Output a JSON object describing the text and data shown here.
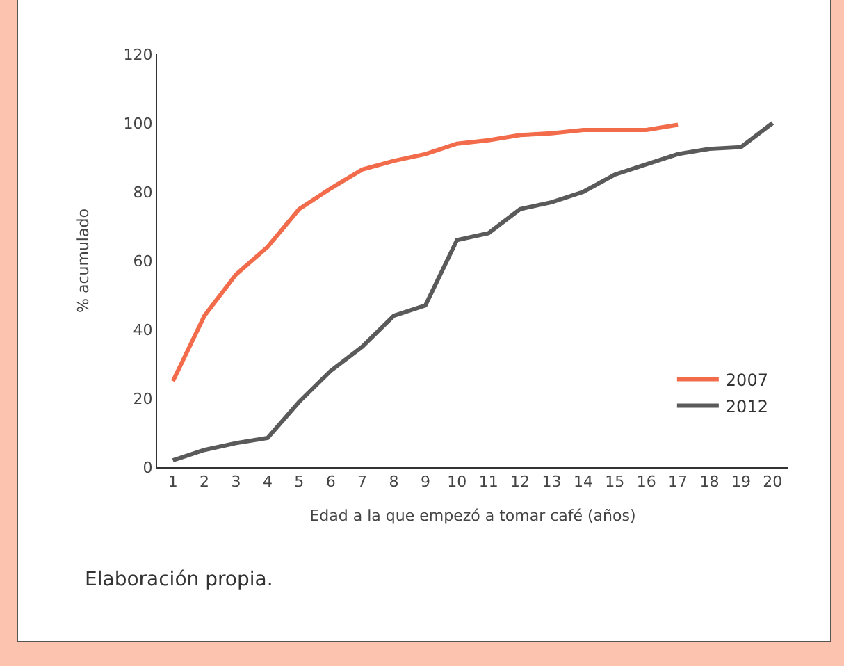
{
  "chart_data": {
    "type": "line",
    "xlabel": "Edad a la que empezó a tomar café (años)",
    "ylabel": "% acumulado",
    "x": [
      1,
      2,
      3,
      4,
      5,
      6,
      7,
      8,
      9,
      10,
      11,
      12,
      13,
      14,
      15,
      16,
      17,
      18,
      19,
      20
    ],
    "series": [
      {
        "name": "2007",
        "color": "#f26b4a",
        "values": [
          25,
          44,
          56,
          64,
          75,
          81,
          86.5,
          89,
          91,
          94,
          95,
          96.5,
          97,
          98,
          98,
          98,
          99.5,
          null,
          null,
          null
        ]
      },
      {
        "name": "2012",
        "color": "#5a5a5a",
        "values": [
          2,
          5,
          7,
          8.5,
          19,
          28,
          35,
          44,
          47,
          66,
          68,
          75,
          77,
          80,
          85,
          88,
          91,
          92.5,
          93,
          100
        ]
      }
    ],
    "xlim": [
      0.5,
      20.5
    ],
    "xticks": [
      1,
      2,
      3,
      4,
      5,
      6,
      7,
      8,
      9,
      10,
      11,
      12,
      13,
      14,
      15,
      16,
      17,
      18,
      19,
      20
    ],
    "ylim": [
      0,
      120
    ],
    "yticks": [
      0,
      20,
      40,
      60,
      80,
      100,
      120
    ],
    "grid": false,
    "legend": "bottom right",
    "marker": "none",
    "line_style": "solid",
    "annotations": [
      "Elaboración propia."
    ]
  }
}
